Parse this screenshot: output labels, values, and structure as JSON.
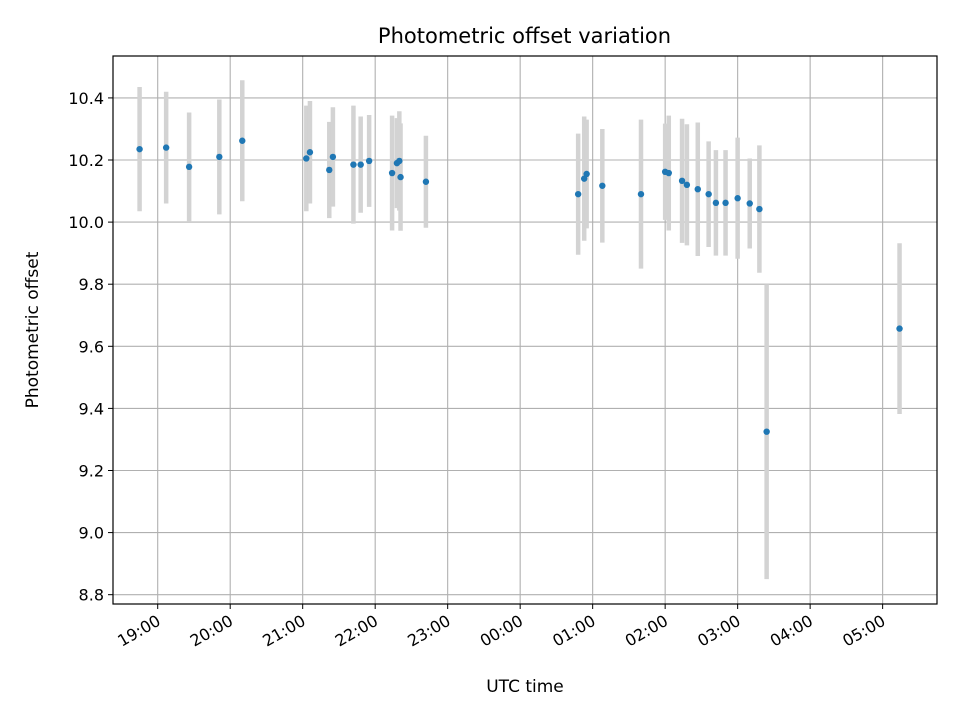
{
  "chart_data": {
    "type": "scatter",
    "title": "Photometric offset variation",
    "xlabel": "UTC time",
    "ylabel": "Photometric offset",
    "grid": true,
    "x_ticks": [
      "19:00",
      "20:00",
      "21:00",
      "22:00",
      "23:00",
      "00:00",
      "01:00",
      "02:00",
      "03:00",
      "04:00",
      "05:00"
    ],
    "x_tick_minutes": [
      0,
      60,
      120,
      180,
      240,
      300,
      360,
      420,
      480,
      540,
      600
    ],
    "xlim_minutes": [
      -37,
      645
    ],
    "y_ticks": [
      "8.8",
      "9.0",
      "9.2",
      "9.4",
      "9.6",
      "9.8",
      "10.0",
      "10.2",
      "10.4"
    ],
    "y_tick_values": [
      8.8,
      9.0,
      9.2,
      9.4,
      9.6,
      9.8,
      10.0,
      10.2,
      10.4
    ],
    "ylim": [
      8.77,
      10.535
    ],
    "colors": {
      "points": "#1f77b4",
      "error_bars": "#d3d3d3",
      "grid": "#b0b0b0"
    },
    "series": [
      {
        "points": [
          {
            "t": -15,
            "y": 10.235,
            "err": 0.2
          },
          {
            "t": 7,
            "y": 10.24,
            "err": 0.18
          },
          {
            "t": 26,
            "y": 10.178,
            "err": 0.175
          },
          {
            "t": 51,
            "y": 10.21,
            "err": 0.185
          },
          {
            "t": 70,
            "y": 10.262,
            "err": 0.195
          },
          {
            "t": 123,
            "y": 10.205,
            "err": 0.17
          },
          {
            "t": 126,
            "y": 10.225,
            "err": 0.165
          },
          {
            "t": 142,
            "y": 10.168,
            "err": 0.155
          },
          {
            "t": 145,
            "y": 10.21,
            "err": 0.16
          },
          {
            "t": 162,
            "y": 10.185,
            "err": 0.19
          },
          {
            "t": 168,
            "y": 10.185,
            "err": 0.155
          },
          {
            "t": 175,
            "y": 10.197,
            "err": 0.148
          },
          {
            "t": 194,
            "y": 10.158,
            "err": 0.185
          },
          {
            "t": 198,
            "y": 10.19,
            "err": 0.145
          },
          {
            "t": 200,
            "y": 10.197,
            "err": 0.16
          },
          {
            "t": 201,
            "y": 10.145,
            "err": 0.173
          },
          {
            "t": 222,
            "y": 10.13,
            "err": 0.148
          },
          {
            "t": 348,
            "y": 10.09,
            "err": 0.195
          },
          {
            "t": 353,
            "y": 10.14,
            "err": 0.2
          },
          {
            "t": 355,
            "y": 10.155,
            "err": 0.175
          },
          {
            "t": 368,
            "y": 10.117,
            "err": 0.183
          },
          {
            "t": 400,
            "y": 10.09,
            "err": 0.24
          },
          {
            "t": 420,
            "y": 10.162,
            "err": 0.155
          },
          {
            "t": 423,
            "y": 10.158,
            "err": 0.185
          },
          {
            "t": 434,
            "y": 10.133,
            "err": 0.2
          },
          {
            "t": 438,
            "y": 10.12,
            "err": 0.195
          },
          {
            "t": 447,
            "y": 10.106,
            "err": 0.215
          },
          {
            "t": 456,
            "y": 10.09,
            "err": 0.17
          },
          {
            "t": 462,
            "y": 10.062,
            "err": 0.17
          },
          {
            "t": 470,
            "y": 10.062,
            "err": 0.17
          },
          {
            "t": 480,
            "y": 10.077,
            "err": 0.195
          },
          {
            "t": 490,
            "y": 10.06,
            "err": 0.145
          },
          {
            "t": 498,
            "y": 10.042,
            "err": 0.205
          },
          {
            "t": 504,
            "y": 9.325,
            "err": 0.475
          },
          {
            "t": 614,
            "y": 9.657,
            "err": 0.275
          }
        ]
      }
    ]
  }
}
